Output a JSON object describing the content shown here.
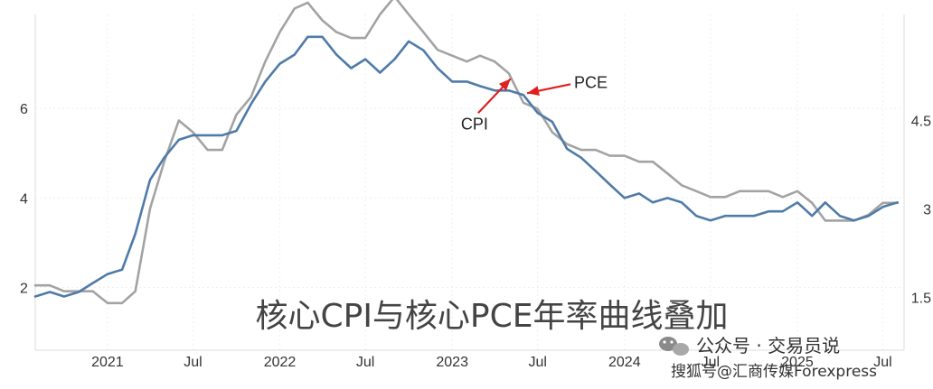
{
  "chart_data": {
    "type": "line",
    "title": "核心CPI与核心PCE年率曲线叠加",
    "x_tick_labels": [
      "2021",
      "Jul",
      "2022",
      "Jul",
      "2023",
      "Jul",
      "2024",
      "Jul",
      "2025",
      "Jul"
    ],
    "x_tick_dates": [
      "2021-01-01",
      "2021-07-01",
      "2022-01-01",
      "2022-07-01",
      "2023-01-01",
      "2023-07-01",
      "2024-01-01",
      "2024-07-01",
      "2025-01-01",
      "2025-07-01"
    ],
    "x_range": [
      "2020-08-01",
      "2025-08-15"
    ],
    "y_left": {
      "range": [
        0.6,
        8.1
      ],
      "tick_labels": [
        "2",
        "4",
        "6"
      ],
      "ticks": [
        2,
        4,
        6
      ]
    },
    "y_right": {
      "range": [
        0.6,
        6.3
      ],
      "tick_labels": [
        "1.5",
        "3",
        "4.5"
      ],
      "ticks": [
        1.5,
        3,
        4.5
      ]
    },
    "grid": true,
    "series": [
      {
        "name": "PCE",
        "axis": "left",
        "color": "#4f7ba8",
        "points": [
          [
            "2020-08-01",
            1.8
          ],
          [
            "2020-09-01",
            1.9
          ],
          [
            "2020-10-01",
            1.8
          ],
          [
            "2020-11-01",
            1.9
          ],
          [
            "2020-12-01",
            2.1
          ],
          [
            "2021-01-01",
            2.3
          ],
          [
            "2021-02-01",
            2.4
          ],
          [
            "2021-03-01",
            3.2
          ],
          [
            "2021-04-01",
            4.4
          ],
          [
            "2021-05-01",
            4.9
          ],
          [
            "2021-06-01",
            5.3
          ],
          [
            "2021-07-01",
            5.4
          ],
          [
            "2021-08-01",
            5.4
          ],
          [
            "2021-09-01",
            5.4
          ],
          [
            "2021-10-01",
            5.5
          ],
          [
            "2021-11-01",
            6.1
          ],
          [
            "2021-12-01",
            6.6
          ],
          [
            "2022-01-01",
            7.0
          ],
          [
            "2022-02-01",
            7.2
          ],
          [
            "2022-03-01",
            7.6
          ],
          [
            "2022-04-01",
            7.6
          ],
          [
            "2022-05-01",
            7.2
          ],
          [
            "2022-06-01",
            6.9
          ],
          [
            "2022-07-01",
            7.1
          ],
          [
            "2022-08-01",
            6.8
          ],
          [
            "2022-09-01",
            7.1
          ],
          [
            "2022-10-01",
            7.5
          ],
          [
            "2022-11-01",
            7.3
          ],
          [
            "2022-12-01",
            6.9
          ],
          [
            "2023-01-01",
            6.6
          ],
          [
            "2023-02-01",
            6.6
          ],
          [
            "2023-03-01",
            6.5
          ],
          [
            "2023-04-01",
            6.4
          ],
          [
            "2023-05-01",
            6.4
          ],
          [
            "2023-06-01",
            6.3
          ],
          [
            "2023-07-01",
            5.9
          ],
          [
            "2023-08-01",
            5.7
          ],
          [
            "2023-09-01",
            5.1
          ],
          [
            "2023-10-01",
            4.9
          ],
          [
            "2023-11-01",
            4.6
          ],
          [
            "2023-12-01",
            4.3
          ],
          [
            "2024-01-01",
            4.0
          ],
          [
            "2024-02-01",
            4.1
          ],
          [
            "2024-03-01",
            3.9
          ],
          [
            "2024-04-01",
            4.0
          ],
          [
            "2024-05-01",
            3.9
          ],
          [
            "2024-06-01",
            3.6
          ],
          [
            "2024-07-01",
            3.5
          ],
          [
            "2024-08-01",
            3.6
          ],
          [
            "2024-09-01",
            3.6
          ],
          [
            "2024-10-01",
            3.6
          ],
          [
            "2024-11-01",
            3.7
          ],
          [
            "2024-12-01",
            3.7
          ],
          [
            "2025-01-01",
            3.9
          ],
          [
            "2025-02-01",
            3.6
          ],
          [
            "2025-03-01",
            3.9
          ],
          [
            "2025-04-01",
            3.6
          ],
          [
            "2025-05-01",
            3.5
          ],
          [
            "2025-06-01",
            3.6
          ],
          [
            "2025-07-01",
            3.8
          ],
          [
            "2025-08-01",
            3.9
          ]
        ]
      },
      {
        "name": "CPI",
        "axis": "right",
        "color": "#a3a3a3",
        "points": [
          [
            "2020-08-01",
            1.7
          ],
          [
            "2020-09-01",
            1.7
          ],
          [
            "2020-10-01",
            1.6
          ],
          [
            "2020-11-01",
            1.6
          ],
          [
            "2020-12-01",
            1.6
          ],
          [
            "2021-01-01",
            1.4
          ],
          [
            "2021-02-01",
            1.4
          ],
          [
            "2021-03-01",
            1.6
          ],
          [
            "2021-04-01",
            3.0
          ],
          [
            "2021-05-01",
            3.8
          ],
          [
            "2021-06-01",
            4.5
          ],
          [
            "2021-07-01",
            4.3
          ],
          [
            "2021-08-01",
            4.0
          ],
          [
            "2021-09-01",
            4.0
          ],
          [
            "2021-10-01",
            4.6
          ],
          [
            "2021-11-01",
            4.9
          ],
          [
            "2021-12-01",
            5.5
          ],
          [
            "2022-01-01",
            6.0
          ],
          [
            "2022-02-01",
            6.4
          ],
          [
            "2022-03-01",
            6.5
          ],
          [
            "2022-04-01",
            6.2
          ],
          [
            "2022-05-01",
            6.0
          ],
          [
            "2022-06-01",
            5.9
          ],
          [
            "2022-07-01",
            5.9
          ],
          [
            "2022-08-01",
            6.3
          ],
          [
            "2022-09-01",
            6.6
          ],
          [
            "2022-10-01",
            6.3
          ],
          [
            "2022-11-01",
            6.0
          ],
          [
            "2022-12-01",
            5.7
          ],
          [
            "2023-01-01",
            5.6
          ],
          [
            "2023-02-01",
            5.5
          ],
          [
            "2023-03-01",
            5.6
          ],
          [
            "2023-04-01",
            5.5
          ],
          [
            "2023-05-01",
            5.3
          ],
          [
            "2023-06-01",
            4.8
          ],
          [
            "2023-07-01",
            4.7
          ],
          [
            "2023-08-01",
            4.3
          ],
          [
            "2023-09-01",
            4.1
          ],
          [
            "2023-10-01",
            4.0
          ],
          [
            "2023-11-01",
            4.0
          ],
          [
            "2023-12-01",
            3.9
          ],
          [
            "2024-01-01",
            3.9
          ],
          [
            "2024-02-01",
            3.8
          ],
          [
            "2024-03-01",
            3.8
          ],
          [
            "2024-04-01",
            3.6
          ],
          [
            "2024-05-01",
            3.4
          ],
          [
            "2024-06-01",
            3.3
          ],
          [
            "2024-07-01",
            3.2
          ],
          [
            "2024-08-01",
            3.2
          ],
          [
            "2024-09-01",
            3.3
          ],
          [
            "2024-10-01",
            3.3
          ],
          [
            "2024-11-01",
            3.3
          ],
          [
            "2024-12-01",
            3.2
          ],
          [
            "2025-01-01",
            3.3
          ],
          [
            "2025-02-01",
            3.1
          ],
          [
            "2025-03-01",
            2.8
          ],
          [
            "2025-04-01",
            2.8
          ],
          [
            "2025-05-01",
            2.8
          ],
          [
            "2025-06-01",
            2.9
          ],
          [
            "2025-07-01",
            3.1
          ],
          [
            "2025-08-01",
            3.1
          ]
        ]
      }
    ],
    "annotations": [
      {
        "text": "PCE",
        "target_series": "PCE",
        "target_x": "2023-06-01",
        "arrow_color": "#e02020"
      },
      {
        "text": "CPI",
        "target_series": "CPI",
        "target_x": "2023-05-01",
        "arrow_color": "#e02020"
      }
    ]
  },
  "watermark": {
    "line1": "公众号 · 交易员说",
    "line2": "搜狐号@汇商传媒Forexpress"
  }
}
